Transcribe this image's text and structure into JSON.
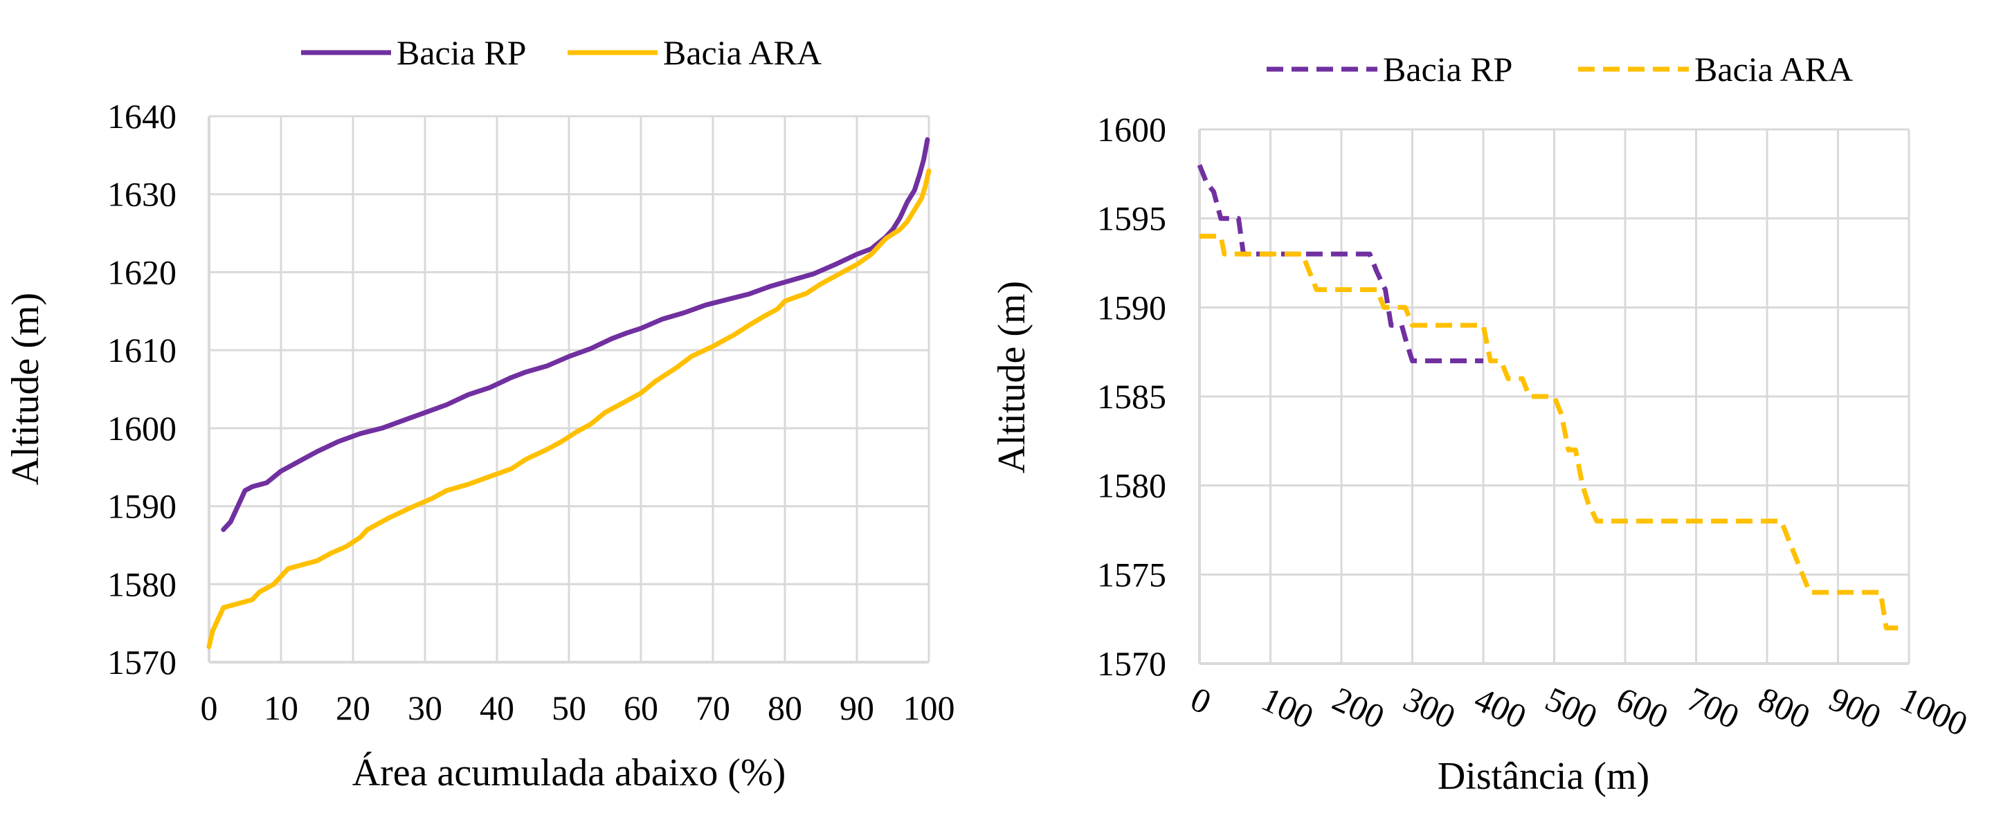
{
  "chart_data": [
    {
      "type": "line",
      "xlabel": "Área acumulada abaixo (%)",
      "ylabel": "Altitude (m)",
      "xlim": [
        0,
        100
      ],
      "ylim": [
        1570,
        1640
      ],
      "xticks": [
        "0",
        "10",
        "20",
        "30",
        "40",
        "50",
        "60",
        "70",
        "80",
        "90",
        "100"
      ],
      "yticks": [
        "1570",
        "1580",
        "1590",
        "1600",
        "1610",
        "1620",
        "1630",
        "1640"
      ],
      "grid": true,
      "legend": "top",
      "series": [
        {
          "name": "Bacia RP",
          "color": "#7030A0",
          "dash": "solid",
          "points": [
            [
              2,
              1587
            ],
            [
              3,
              1588
            ],
            [
              4,
              1590
            ],
            [
              5,
              1592
            ],
            [
              6,
              1592.5
            ],
            [
              8,
              1593
            ],
            [
              10,
              1594.5
            ],
            [
              13,
              1596
            ],
            [
              15,
              1597
            ],
            [
              18,
              1598.3
            ],
            [
              21,
              1599.3
            ],
            [
              24,
              1600
            ],
            [
              27,
              1601
            ],
            [
              30,
              1602
            ],
            [
              33,
              1603
            ],
            [
              36,
              1604.3
            ],
            [
              39,
              1605.2
            ],
            [
              42,
              1606.5
            ],
            [
              44,
              1607.2
            ],
            [
              47,
              1608
            ],
            [
              50,
              1609.2
            ],
            [
              53,
              1610.2
            ],
            [
              56,
              1611.5
            ],
            [
              58,
              1612.2
            ],
            [
              60,
              1612.8
            ],
            [
              63,
              1614
            ],
            [
              66,
              1614.8
            ],
            [
              69,
              1615.8
            ],
            [
              72,
              1616.5
            ],
            [
              75,
              1617.2
            ],
            [
              78,
              1618.2
            ],
            [
              81,
              1619
            ],
            [
              84,
              1619.8
            ],
            [
              87,
              1621
            ],
            [
              90,
              1622.3
            ],
            [
              92,
              1623
            ],
            [
              94,
              1624.5
            ],
            [
              95,
              1625.5
            ],
            [
              96,
              1627
            ],
            [
              97,
              1629
            ],
            [
              98,
              1630.5
            ],
            [
              98.7,
              1632.5
            ],
            [
              99.3,
              1634.5
            ],
            [
              99.8,
              1637
            ]
          ]
        },
        {
          "name": "Bacia ARA",
          "color": "#FFC000",
          "dash": "solid",
          "points": [
            [
              0,
              1572
            ],
            [
              0.5,
              1574
            ],
            [
              1,
              1575
            ],
            [
              2,
              1577
            ],
            [
              4,
              1577.5
            ],
            [
              6,
              1578
            ],
            [
              7,
              1579
            ],
            [
              9,
              1580
            ],
            [
              11,
              1582
            ],
            [
              13,
              1582.5
            ],
            [
              15,
              1583
            ],
            [
              17,
              1584
            ],
            [
              19,
              1584.8
            ],
            [
              21,
              1586
            ],
            [
              22,
              1587
            ],
            [
              25,
              1588.5
            ],
            [
              28,
              1589.8
            ],
            [
              31,
              1591
            ],
            [
              33,
              1592
            ],
            [
              36,
              1592.8
            ],
            [
              39,
              1593.8
            ],
            [
              42,
              1594.8
            ],
            [
              44,
              1596
            ],
            [
              47,
              1597.3
            ],
            [
              49,
              1598.3
            ],
            [
              51,
              1599.5
            ],
            [
              53,
              1600.5
            ],
            [
              55,
              1602
            ],
            [
              58,
              1603.5
            ],
            [
              60,
              1604.5
            ],
            [
              62,
              1606
            ],
            [
              65,
              1607.8
            ],
            [
              67,
              1609.2
            ],
            [
              70,
              1610.5
            ],
            [
              73,
              1612
            ],
            [
              75,
              1613.2
            ],
            [
              77,
              1614.3
            ],
            [
              79,
              1615.3
            ],
            [
              80,
              1616.3
            ],
            [
              83,
              1617.3
            ],
            [
              85,
              1618.5
            ],
            [
              88,
              1620
            ],
            [
              90,
              1621
            ],
            [
              92,
              1622.3
            ],
            [
              94,
              1624.3
            ],
            [
              96,
              1625.5
            ],
            [
              97,
              1626.5
            ],
            [
              98,
              1628
            ],
            [
              99,
              1629.5
            ],
            [
              99.5,
              1631
            ],
            [
              100,
              1633
            ]
          ]
        }
      ]
    },
    {
      "type": "line",
      "xlabel": "Distância (m)",
      "ylabel": "Altitude (m)",
      "xlim": [
        0,
        1000
      ],
      "ylim": [
        1570,
        1600
      ],
      "xticks": [
        "0",
        "100",
        "200",
        "300",
        "400",
        "500",
        "600",
        "700",
        "800",
        "900",
        "1000"
      ],
      "yticks": [
        "1570",
        "1575",
        "1580",
        "1585",
        "1590",
        "1595",
        "1600"
      ],
      "grid": true,
      "legend": "top",
      "series": [
        {
          "name": "Bacia RP",
          "color": "#7030A0",
          "dash": "dashed",
          "points": [
            [
              0,
              1598
            ],
            [
              10,
              1597
            ],
            [
              20,
              1596.5
            ],
            [
              30,
              1595
            ],
            [
              40,
              1595
            ],
            [
              55,
              1595
            ],
            [
              62,
              1593
            ],
            [
              240,
              1593
            ],
            [
              250,
              1592
            ],
            [
              262,
              1591
            ],
            [
              270,
              1589
            ],
            [
              285,
              1589
            ],
            [
              292,
              1588
            ],
            [
              300,
              1587
            ],
            [
              400,
              1587
            ]
          ]
        },
        {
          "name": "Bacia ARA",
          "color": "#FFC000",
          "dash": "dashed",
          "points": [
            [
              0,
              1594
            ],
            [
              30,
              1594
            ],
            [
              35,
              1593
            ],
            [
              145,
              1593
            ],
            [
              155,
              1592
            ],
            [
              165,
              1591
            ],
            [
              250,
              1591
            ],
            [
              260,
              1590
            ],
            [
              290,
              1590
            ],
            [
              300,
              1589
            ],
            [
              400,
              1589
            ],
            [
              410,
              1587
            ],
            [
              425,
              1587
            ],
            [
              435,
              1586
            ],
            [
              455,
              1586
            ],
            [
              465,
              1585
            ],
            [
              500,
              1585
            ],
            [
              510,
              1584
            ],
            [
              520,
              1582
            ],
            [
              530,
              1582
            ],
            [
              540,
              1580
            ],
            [
              548,
              1579
            ],
            [
              560,
              1578
            ],
            [
              820,
              1578
            ],
            [
              840,
              1576
            ],
            [
              860,
              1574
            ],
            [
              960,
              1574
            ],
            [
              968,
              1572
            ],
            [
              990,
              1572
            ]
          ]
        }
      ]
    }
  ]
}
